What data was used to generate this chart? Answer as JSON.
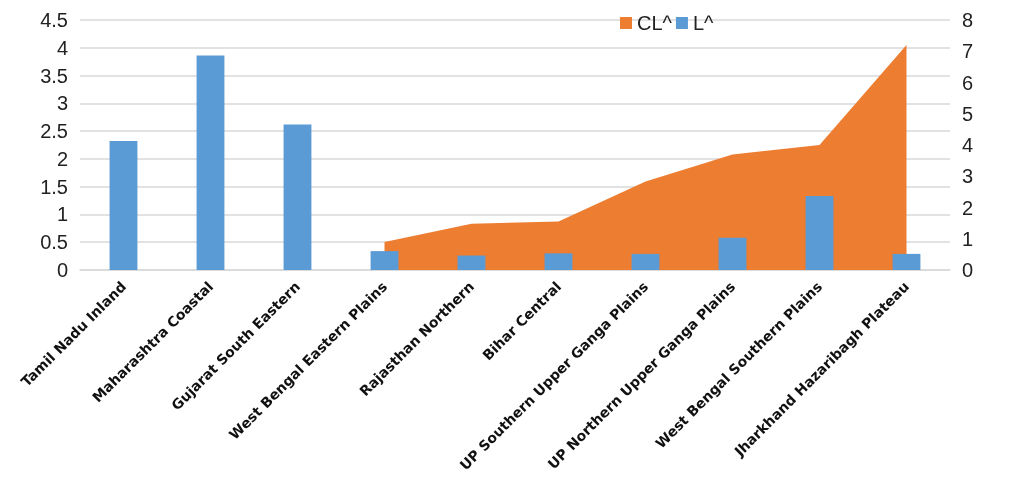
{
  "chart_data": {
    "type": "bar",
    "categories": [
      "Tamil Nadu Inland",
      "Maharashtra Coastal",
      "Gujarat South Eastern",
      "West Bengal Eastern Plains",
      "Rajasthan Northern",
      "Bihar Central",
      "UP Southern Upper Ganga Plains",
      "UP Northern Upper Ganga Plains",
      "West Bengal Southern Plains",
      "Jharkhand Hazaribagh Plateau"
    ],
    "series": [
      {
        "name": "CL^",
        "type": "area",
        "axis": "y2",
        "color": "#ed7d31",
        "values": [
          null,
          null,
          null,
          0.9,
          1.48,
          1.55,
          2.83,
          3.7,
          4.0,
          7.2
        ]
      },
      {
        "name": "L^",
        "type": "bar",
        "color": "#5b9bd5",
        "values": [
          2.32,
          3.86,
          2.62,
          0.34,
          0.26,
          0.3,
          0.29,
          0.58,
          1.33,
          0.29
        ]
      }
    ],
    "ylim": [
      0,
      4.5
    ],
    "yticks": [
      0,
      0.5,
      1,
      1.5,
      2,
      2.5,
      3,
      3.5,
      4,
      4.5
    ],
    "y2lim": [
      0,
      8
    ],
    "y2ticks": [
      0,
      1,
      2,
      3,
      4,
      5,
      6,
      7,
      8
    ],
    "grid": "y",
    "legend": "top"
  }
}
